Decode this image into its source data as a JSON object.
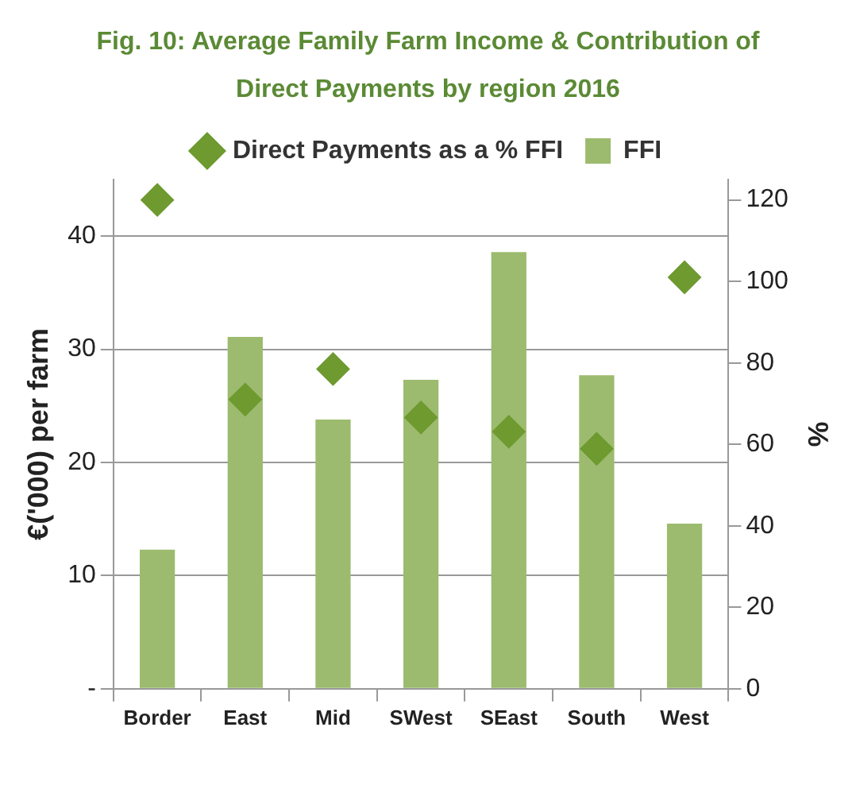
{
  "chart_data": {
    "type": "bar",
    "title": "Fig. 10: Average Family Farm Income & Contribution of Direct Payments by region 2016",
    "ylabel": "€('000) per farm",
    "y2label": "%",
    "categories": [
      "Border",
      "East",
      "Mid",
      "SWest",
      "SEast",
      "South",
      "West"
    ],
    "series": [
      {
        "name": "FFI",
        "color": "#9cbb6e",
        "values": [
          12.3,
          31.1,
          23.8,
          27.3,
          38.6,
          27.7,
          14.6
        ]
      },
      {
        "name": "Direct Payments as a % FFI",
        "type": "scatter",
        "axis": "y2",
        "marker": "diamond",
        "color": "#6e9a30",
        "values": [
          120,
          71,
          78.5,
          66.6,
          63.1,
          58.9,
          101
        ]
      }
    ],
    "ylim": [
      0,
      45
    ],
    "yticks": [
      {
        "value": 0,
        "label": "-"
      },
      10,
      20,
      30,
      40
    ],
    "y2lim": [
      0,
      125
    ],
    "y2ticks": [
      0,
      20,
      40,
      60,
      80,
      100,
      120
    ],
    "grid": "y",
    "legend": "top"
  }
}
